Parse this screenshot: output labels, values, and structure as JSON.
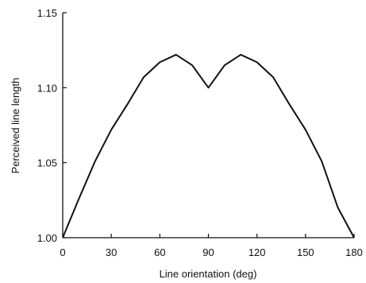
{
  "chart_data": {
    "type": "line",
    "title": "",
    "xlabel": "Line orientation (deg)",
    "ylabel": "Perceived line length",
    "xlim": [
      0,
      180
    ],
    "ylim": [
      1.0,
      1.15
    ],
    "xticks": [
      0,
      30,
      60,
      90,
      120,
      150,
      180
    ],
    "xtick_labels": [
      "0",
      "30",
      "60",
      "90",
      "120",
      "150",
      "180"
    ],
    "yticks": [
      1.0,
      1.05,
      1.1,
      1.15
    ],
    "ytick_labels": [
      "1.00",
      "1.05",
      "1.10",
      "1.15"
    ],
    "grid": false,
    "legend": "none",
    "line_color": "#111111",
    "series": [
      {
        "x": [
          0,
          10,
          20,
          30,
          40,
          50,
          60,
          70,
          80,
          90,
          100,
          110,
          120,
          130,
          140,
          150,
          160,
          170,
          180
        ],
        "y": [
          1.0,
          1.026,
          1.051,
          1.072,
          1.089,
          1.107,
          1.117,
          1.122,
          1.115,
          1.1,
          1.115,
          1.122,
          1.117,
          1.107,
          1.089,
          1.072,
          1.051,
          1.02,
          1.0
        ]
      }
    ]
  }
}
